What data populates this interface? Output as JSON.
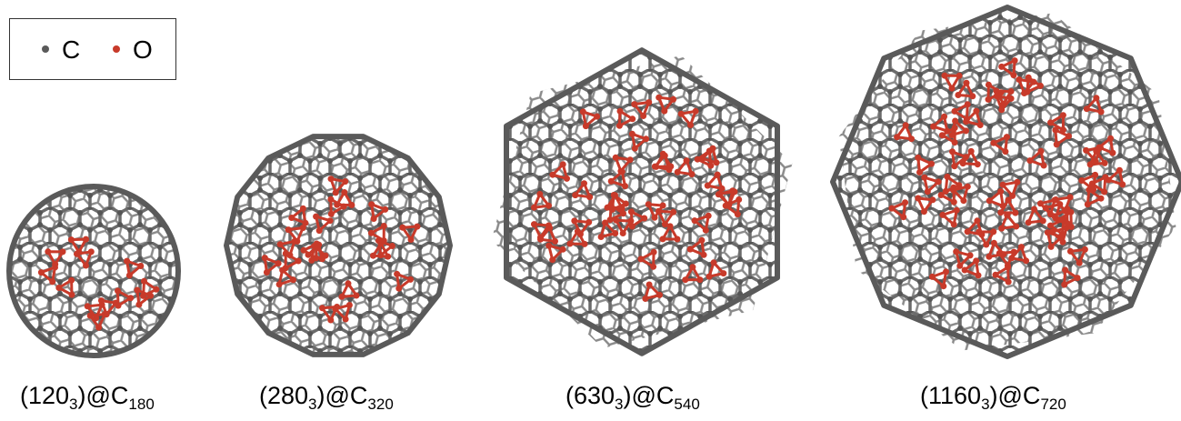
{
  "legend": {
    "items": [
      {
        "label": "C",
        "color": "#5a5a5a"
      },
      {
        "label": "O",
        "color": "#c83a2a"
      }
    ]
  },
  "structures": [
    {
      "prefix": "(120",
      "sub1": "3",
      "mid": ")@C",
      "sub2": "180"
    },
    {
      "prefix": "(280",
      "sub1": "3",
      "mid": ")@C",
      "sub2": "320"
    },
    {
      "prefix": "(630",
      "sub1": "3",
      "mid": ")@C",
      "sub2": "540"
    },
    {
      "prefix": "(1160",
      "sub1": "3",
      "mid": ")@C",
      "sub2": "720"
    }
  ]
}
